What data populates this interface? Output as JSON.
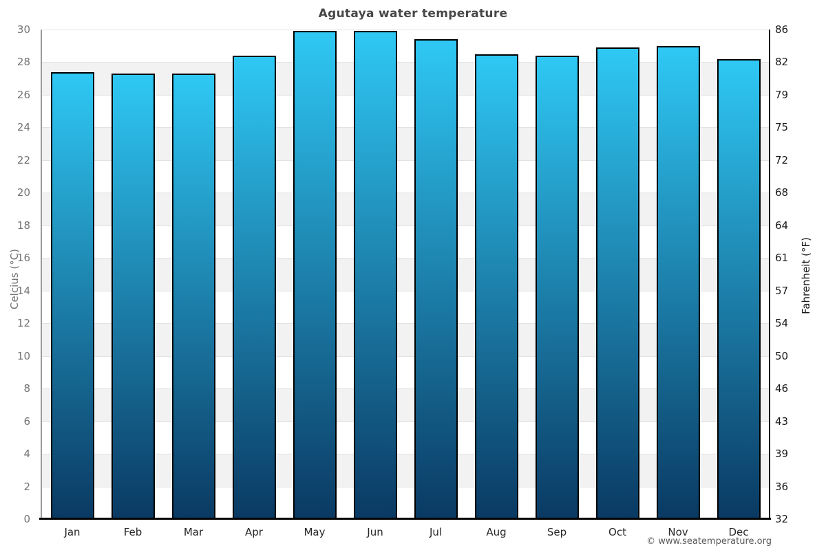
{
  "title": "Agutaya water temperature",
  "chart_data": {
    "type": "bar",
    "title": "Agutaya water temperature",
    "categories": [
      "Jan",
      "Feb",
      "Mar",
      "Apr",
      "May",
      "Jun",
      "Jul",
      "Aug",
      "Sep",
      "Oct",
      "Nov",
      "Dec"
    ],
    "values": [
      27.4,
      27.3,
      27.3,
      28.4,
      29.9,
      29.9,
      29.4,
      28.5,
      28.4,
      28.9,
      29.0,
      28.2
    ],
    "unit": "°C",
    "ylabel_left": "Celcius (°C)",
    "ylabel_right": "Fahrenheit (°F)",
    "ylim_celsius": [
      0,
      30
    ],
    "yticks_celsius": [
      0,
      2,
      4,
      6,
      8,
      10,
      12,
      14,
      16,
      18,
      20,
      22,
      24,
      26,
      28,
      30
    ],
    "yticks_fahrenheit": [
      32,
      36,
      39,
      43,
      46,
      50,
      54,
      57,
      61,
      64,
      68,
      72,
      75,
      79,
      82,
      86
    ],
    "xlabel": "",
    "legend": "none",
    "grid": "horizontal alternating bands every 2°C"
  },
  "footer": {
    "copyright": "© www.seatemperature.org"
  },
  "colors": {
    "bar_gradient_top": "#2fc8f4",
    "bar_gradient_bottom": "#0a3a63",
    "bar_border": "#000000",
    "band_gray": "#f2f2f2",
    "gridline": "#e2e2e2",
    "title_text": "#474747",
    "left_axis_text": "#737373",
    "right_axis_text": "#1a1a1a",
    "month_text": "#262626"
  }
}
